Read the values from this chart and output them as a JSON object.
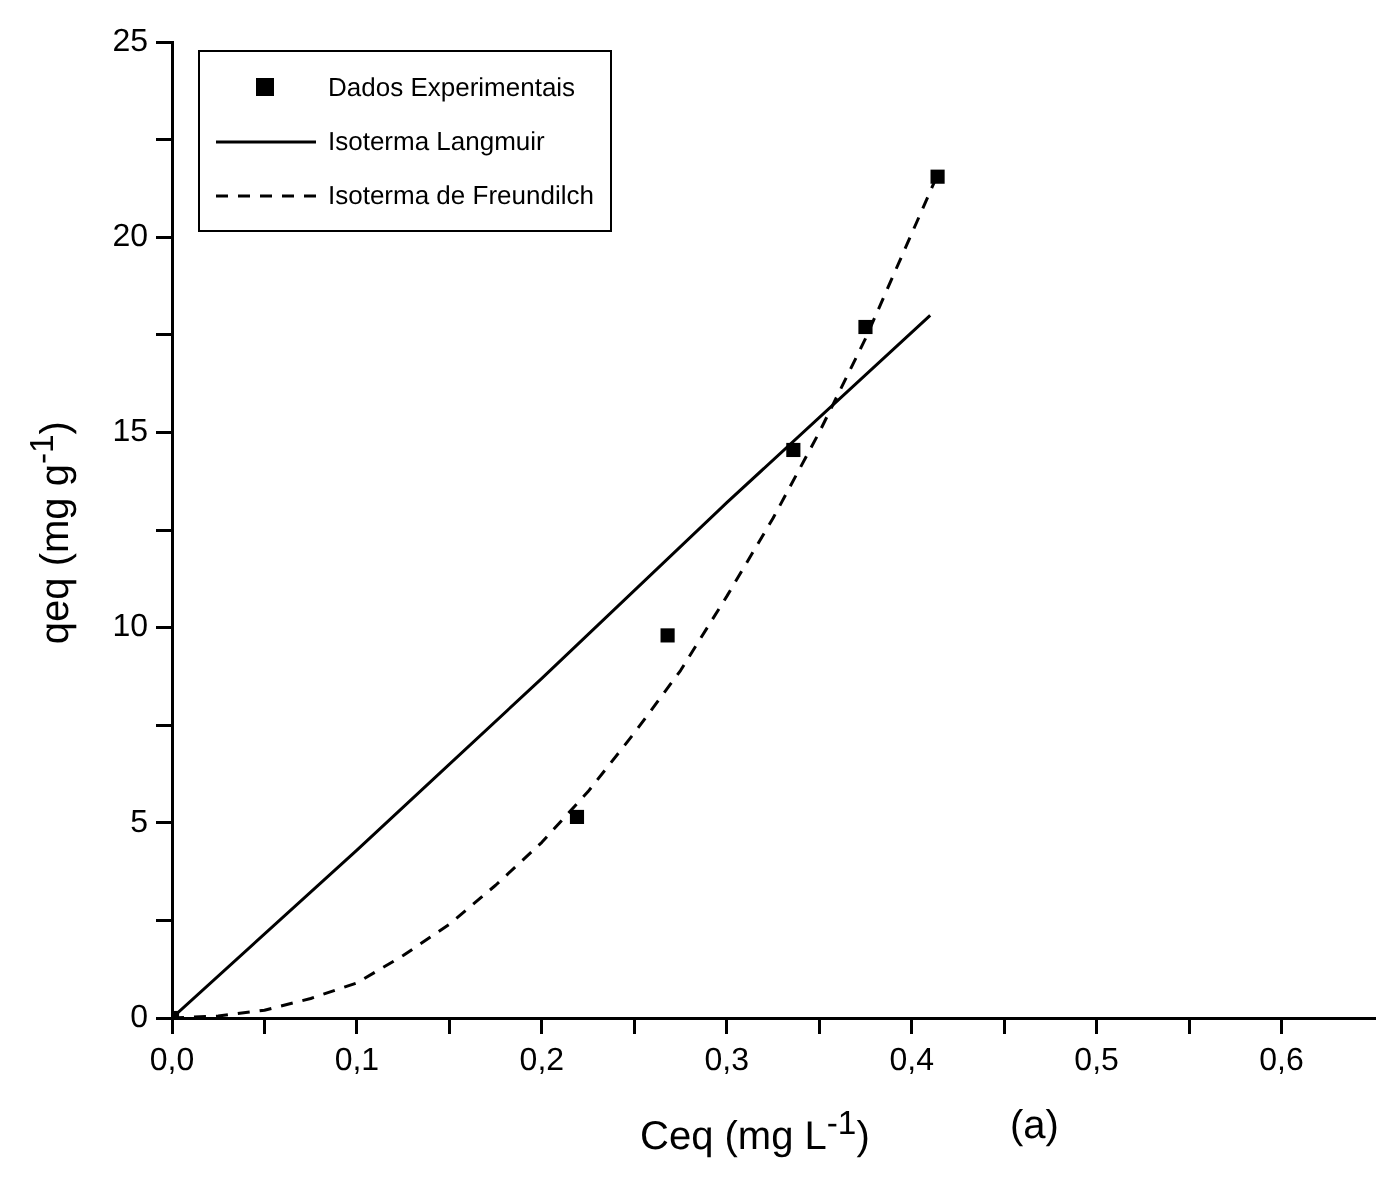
{
  "chart_data": {
    "type": "scatter",
    "xlabel": "Ceq (mg L$^{-1}$)",
    "ylabel": "qeq (mg g$^{-1}$)",
    "annotations": [
      "(a)"
    ],
    "xlim": [
      0,
      0.65
    ],
    "ylim": [
      0,
      25
    ],
    "xticks": [
      {
        "value": 0,
        "label": "0,0"
      },
      {
        "value": 0.05,
        "label": null
      },
      {
        "value": 0.1,
        "label": "0,1"
      },
      {
        "value": 0.15,
        "label": null
      },
      {
        "value": 0.2,
        "label": "0,2"
      },
      {
        "value": 0.25,
        "label": null
      },
      {
        "value": 0.3,
        "label": "0,3"
      },
      {
        "value": 0.35,
        "label": null
      },
      {
        "value": 0.4,
        "label": "0,4"
      },
      {
        "value": 0.45,
        "label": null
      },
      {
        "value": 0.5,
        "label": "0,5"
      },
      {
        "value": 0.55,
        "label": null
      },
      {
        "value": 0.6,
        "label": "0,6"
      }
    ],
    "yticks": [
      0,
      {
        "value": 2.5,
        "label": null
      },
      5,
      {
        "value": 7.5,
        "label": null
      },
      10,
      {
        "value": 12.5,
        "label": null
      },
      15,
      {
        "value": 17.5,
        "label": null
      },
      20,
      {
        "value": 22.5,
        "label": null
      },
      25
    ],
    "grid": false,
    "legend": "top left",
    "series": [
      {
        "name": "Dados Experimentais",
        "marker": "square",
        "color": "#000000",
        "x": [
          0,
          0.219,
          0.268,
          0.336,
          0.375,
          0.414
        ],
        "values": [
          0,
          5.15,
          9.8,
          14.55,
          17.7,
          21.55
        ]
      },
      {
        "name": "Isoterma Langmuir",
        "type": "line",
        "line_style": "solid",
        "marker": "none",
        "color": "#000000",
        "x": [
          0,
          0.1,
          0.2,
          0.3,
          0.41
        ],
        "values": [
          0,
          4.3,
          8.7,
          13.2,
          18.0
        ]
      },
      {
        "name": "Isoterma de Freundilch",
        "type": "line",
        "line_style": "dashed",
        "marker": "none",
        "color": "#000000",
        "x": [
          0,
          0.025,
          0.05,
          0.075,
          0.1,
          0.125,
          0.15,
          0.175,
          0.2,
          0.225,
          0.25,
          0.275,
          0.3,
          0.325,
          0.35,
          0.375,
          0.414
        ],
        "values": [
          0,
          0.05,
          0.2,
          0.5,
          0.9,
          1.6,
          2.4,
          3.4,
          4.5,
          5.8,
          7.3,
          8.9,
          10.8,
          12.8,
          15.0,
          17.4,
          21.6
        ]
      }
    ]
  }
}
